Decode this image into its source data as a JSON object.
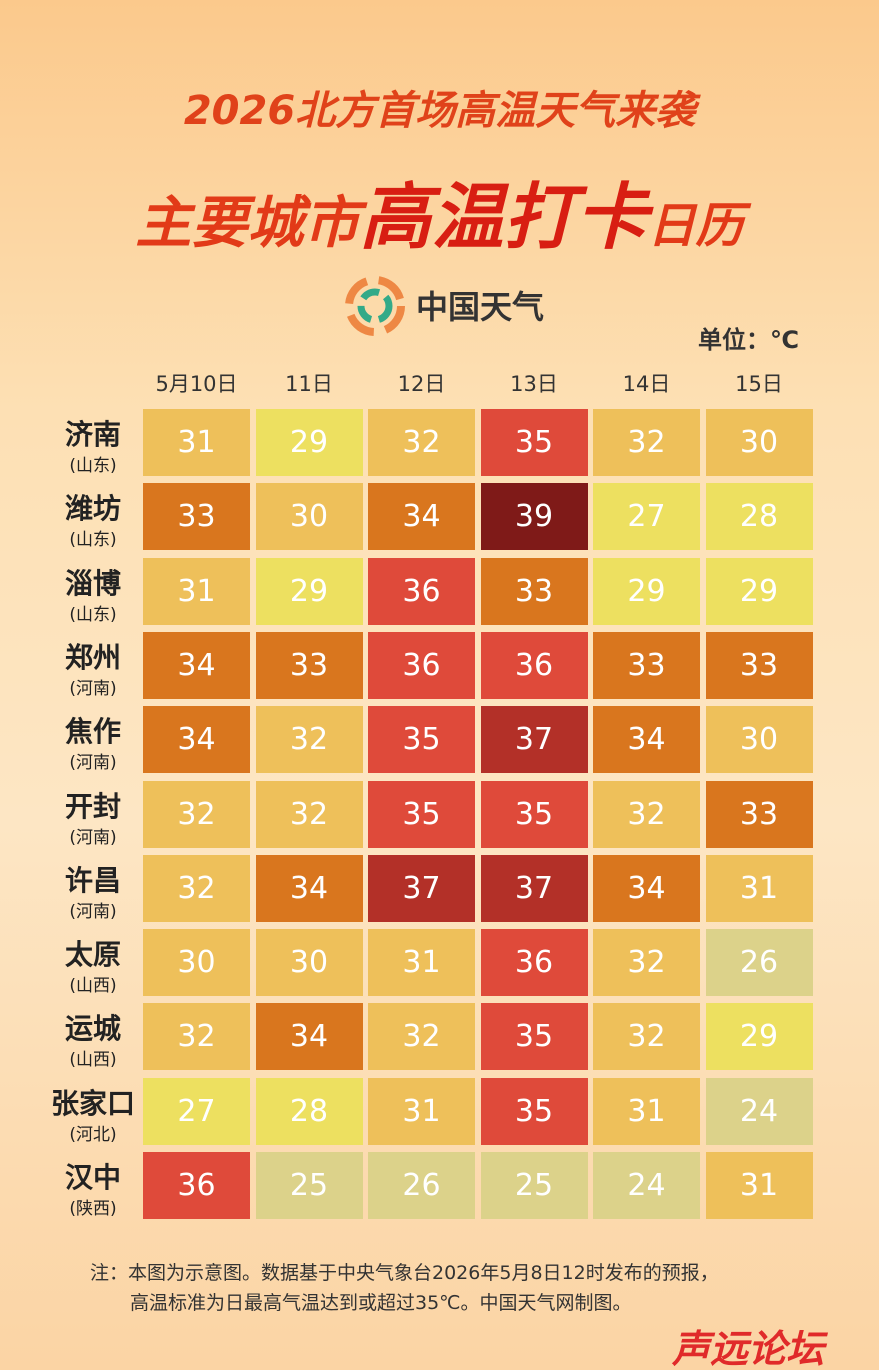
{
  "header": {
    "line1": "2026北方首场高温天气来袭",
    "line2": [
      "主要城市",
      "高温打卡",
      "日历"
    ],
    "logo": "中国天气",
    "unit": "单位：℃"
  },
  "table": {
    "columns": [
      "5月10日",
      "11日",
      "12日",
      "13日",
      "14日",
      "15日"
    ],
    "rows": [
      {
        "city": "济南",
        "province": "(山东)",
        "values": [
          31,
          29,
          32,
          35,
          32,
          30
        ]
      },
      {
        "city": "潍坊",
        "province": "(山东)",
        "values": [
          33,
          30,
          34,
          39,
          27,
          28
        ]
      },
      {
        "city": "淄博",
        "province": "(山东)",
        "values": [
          31,
          29,
          36,
          33,
          29,
          29
        ]
      },
      {
        "city": "郑州",
        "province": "(河南)",
        "values": [
          34,
          33,
          36,
          36,
          33,
          33
        ]
      },
      {
        "city": "焦作",
        "province": "(河南)",
        "values": [
          34,
          32,
          35,
          37,
          34,
          30
        ]
      },
      {
        "city": "开封",
        "province": "(河南)",
        "values": [
          32,
          32,
          35,
          35,
          32,
          33
        ]
      },
      {
        "city": "许昌",
        "province": "(河南)",
        "values": [
          32,
          34,
          37,
          37,
          34,
          31
        ]
      },
      {
        "city": "太原",
        "province": "(山西)",
        "values": [
          30,
          30,
          31,
          36,
          32,
          26
        ]
      },
      {
        "city": "运城",
        "province": "(山西)",
        "values": [
          32,
          34,
          32,
          35,
          32,
          29
        ]
      },
      {
        "city": "张家口",
        "province": "(河北)",
        "values": [
          27,
          28,
          31,
          35,
          31,
          24
        ]
      },
      {
        "city": "汉中",
        "province": "(陕西)",
        "values": [
          36,
          25,
          26,
          25,
          24,
          31
        ]
      }
    ]
  },
  "footer": {
    "note": [
      "注：本图为示意图。数据基于中央气象台2026年5月8日12时发布的预报，",
      "高温标准为日最高气温达到或超过35℃。中国天气网制图。"
    ],
    "brand": "声远论坛"
  }
}
